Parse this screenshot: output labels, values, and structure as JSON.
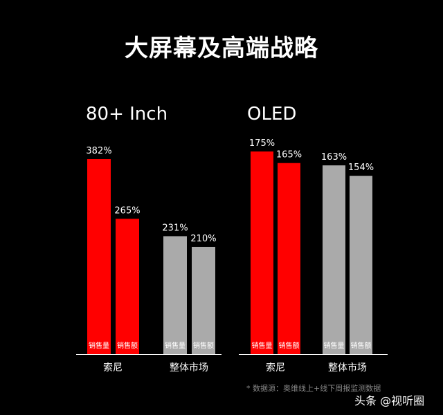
{
  "title": "大屏幕及高端战略",
  "colors": {
    "red": "#ff0000",
    "gray": "#aaaaaa",
    "axis": "#ffffff",
    "label": "#ffffff",
    "bar_text": "#ffffff"
  },
  "chart_data": [
    {
      "type": "bar",
      "title": "80+ Inch",
      "categories": [
        "索尼",
        "整体市场"
      ],
      "ylim": [
        0,
        400
      ],
      "series": [
        {
          "category": "索尼",
          "values": [
            382,
            265
          ],
          "value_labels": [
            "382%",
            "265%"
          ],
          "bar_labels": [
            "销售量",
            "销售额"
          ],
          "color": "red"
        },
        {
          "category": "整体市场",
          "values": [
            231,
            210
          ],
          "value_labels": [
            "231%",
            "210%"
          ],
          "bar_labels": [
            "销售量",
            "销售额"
          ],
          "color": "gray"
        }
      ]
    },
    {
      "type": "bar",
      "title": "OLED",
      "categories": [
        "索尼",
        "整体市场"
      ],
      "ylim": [
        0,
        190
      ],
      "series": [
        {
          "category": "索尼",
          "values": [
            175,
            165
          ],
          "value_labels": [
            "175%",
            "165%"
          ],
          "bar_labels": [
            "销售量",
            "销售额"
          ],
          "color": "red"
        },
        {
          "category": "整体市场",
          "values": [
            163,
            154
          ],
          "value_labels": [
            "163%",
            "154%"
          ],
          "bar_labels": [
            "销售量",
            "销售额"
          ],
          "color": "gray"
        }
      ]
    }
  ],
  "source": "* 数据源：奥维线上+线下周报监测数据",
  "watermark": "头条 @视听圈"
}
